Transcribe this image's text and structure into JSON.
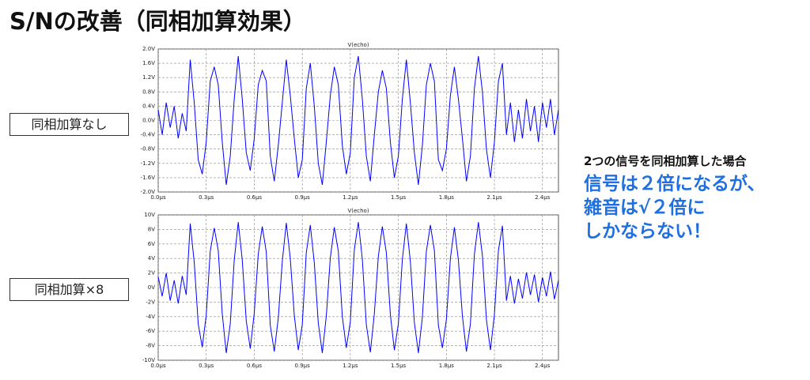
{
  "title": "S/Nの改善（同相加算効果）",
  "side_labels": [
    "同相加算なし",
    "同相加算×8"
  ],
  "note": {
    "heading": "2つの信号を同相加算した場合",
    "lines": [
      "信号は２倍になるが、",
      "雑音は√２倍に",
      "しかならない！"
    ]
  },
  "chart_data": [
    {
      "type": "line",
      "title": "V(echo)",
      "color": "#0000ff",
      "grid": true,
      "x": [
        0,
        0.025,
        0.05,
        0.075,
        0.1,
        0.125,
        0.15,
        0.175,
        0.2,
        0.225,
        0.25,
        0.275,
        0.3,
        0.325,
        0.35,
        0.375,
        0.4,
        0.425,
        0.45,
        0.475,
        0.5,
        0.525,
        0.55,
        0.575,
        0.6,
        0.625,
        0.65,
        0.675,
        0.7,
        0.725,
        0.75,
        0.775,
        0.8,
        0.825,
        0.85,
        0.875,
        0.9,
        0.925,
        0.95,
        0.975,
        1,
        1.025,
        1.05,
        1.075,
        1.1,
        1.125,
        1.15,
        1.175,
        1.2,
        1.225,
        1.25,
        1.275,
        1.3,
        1.325,
        1.35,
        1.375,
        1.4,
        1.425,
        1.45,
        1.475,
        1.5,
        1.525,
        1.55,
        1.575,
        1.6,
        1.625,
        1.65,
        1.675,
        1.7,
        1.725,
        1.75,
        1.775,
        1.8,
        1.825,
        1.85,
        1.875,
        1.9,
        1.925,
        1.95,
        1.975,
        2,
        2.025,
        2.05,
        2.075,
        2.1,
        2.125,
        2.15,
        2.175,
        2.2,
        2.225,
        2.25,
        2.275,
        2.3,
        2.325,
        2.35,
        2.375,
        2.4,
        2.425,
        2.45,
        2.475,
        2.5
      ],
      "values": [
        0.3,
        -0.4,
        0.5,
        -0.2,
        0.4,
        -0.5,
        0.2,
        -0.3,
        1.7,
        0.5,
        -1.1,
        -1.5,
        -0.6,
        1.1,
        1.5,
        1.0,
        -0.6,
        -1.8,
        -1.0,
        0.6,
        1.8,
        0.6,
        -0.9,
        -1.4,
        -0.5,
        1.0,
        1.4,
        1.1,
        -1.0,
        -1.7,
        -0.7,
        0.5,
        1.7,
        0.7,
        -0.5,
        -1.6,
        -1.1,
        0.9,
        1.6,
        0.4,
        -1.2,
        -1.8,
        -0.6,
        0.7,
        1.5,
        1.0,
        -0.7,
        -1.5,
        -0.9,
        1.2,
        1.8,
        0.6,
        -1.0,
        -1.7,
        -0.4,
        0.8,
        1.4,
        0.9,
        -0.6,
        -1.6,
        -1.0,
        0.6,
        1.7,
        0.5,
        -0.9,
        -1.8,
        -0.7,
        1.0,
        1.6,
        1.1,
        -1.1,
        -1.4,
        -0.8,
        0.7,
        1.5,
        0.6,
        -0.5,
        -1.7,
        -1.0,
        0.9,
        1.8,
        0.8,
        -0.8,
        -1.6,
        -0.6,
        1.1,
        1.6,
        -0.4,
        0.5,
        -0.6,
        0.3,
        -0.5,
        0.6,
        -0.3,
        0.4,
        -0.6,
        0.5,
        -0.2,
        0.6,
        -0.4,
        0.3
      ],
      "xlim": [
        0,
        2.5
      ],
      "ylim": [
        -2,
        2
      ],
      "xticks": [
        {
          "value": 0,
          "label": "0.0µs"
        },
        {
          "value": 0.3,
          "label": "0.3µs"
        },
        {
          "value": 0.6,
          "label": "0.6µs"
        },
        {
          "value": 0.9,
          "label": "0.9µs"
        },
        {
          "value": 1.2,
          "label": "1.2µs"
        },
        {
          "value": 1.5,
          "label": "1.5µs"
        },
        {
          "value": 1.8,
          "label": "1.8µs"
        },
        {
          "value": 2.1,
          "label": "2.1µs"
        },
        {
          "value": 2.4,
          "label": "2.4µs"
        }
      ],
      "yticks": [
        {
          "value": 2,
          "label": "2.0V"
        },
        {
          "value": 1.6,
          "label": "1.6V"
        },
        {
          "value": 1.2,
          "label": "1.2V"
        },
        {
          "value": 0.8,
          "label": "0.8V"
        },
        {
          "value": 0.4,
          "label": "0.4V"
        },
        {
          "value": 0,
          "label": "0.0V"
        },
        {
          "value": -0.4,
          "label": "-0.4V"
        },
        {
          "value": -0.8,
          "label": "-0.8V"
        },
        {
          "value": -1.2,
          "label": "-1.2V"
        },
        {
          "value": -1.6,
          "label": "-1.6V"
        },
        {
          "value": -2,
          "label": "-2.0V"
        }
      ]
    },
    {
      "type": "line",
      "title": "V(echo)",
      "color": "#0000ff",
      "grid": true,
      "x": [
        0,
        0.025,
        0.05,
        0.075,
        0.1,
        0.125,
        0.15,
        0.175,
        0.2,
        0.225,
        0.25,
        0.275,
        0.3,
        0.325,
        0.35,
        0.375,
        0.4,
        0.425,
        0.45,
        0.475,
        0.5,
        0.525,
        0.55,
        0.575,
        0.6,
        0.625,
        0.65,
        0.675,
        0.7,
        0.725,
        0.75,
        0.775,
        0.8,
        0.825,
        0.85,
        0.875,
        0.9,
        0.925,
        0.95,
        0.975,
        1,
        1.025,
        1.05,
        1.075,
        1.1,
        1.125,
        1.15,
        1.175,
        1.2,
        1.225,
        1.25,
        1.275,
        1.3,
        1.325,
        1.35,
        1.375,
        1.4,
        1.425,
        1.45,
        1.475,
        1.5,
        1.525,
        1.55,
        1.575,
        1.6,
        1.625,
        1.65,
        1.675,
        1.7,
        1.725,
        1.75,
        1.775,
        1.8,
        1.825,
        1.85,
        1.875,
        1.9,
        1.925,
        1.95,
        1.975,
        2,
        2.025,
        2.05,
        2.075,
        2.1,
        2.125,
        2.15,
        2.175,
        2.2,
        2.225,
        2.25,
        2.275,
        2.3,
        2.325,
        2.35,
        2.375,
        2.4,
        2.425,
        2.45,
        2.475,
        2.5
      ],
      "values": [
        1.5,
        -1.2,
        2.0,
        -1.8,
        1.0,
        -2.2,
        1.6,
        -1.0,
        8.8,
        3.5,
        -5.0,
        -8.2,
        -3.8,
        5.0,
        8.2,
        5.1,
        -3.6,
        -9.0,
        -5.0,
        3.8,
        9.0,
        3.8,
        -4.6,
        -8.4,
        -3.5,
        4.6,
        8.4,
        4.9,
        -5.2,
        -8.8,
        -4.2,
        3.6,
        8.9,
        4.0,
        -3.8,
        -8.6,
        -5.1,
        4.8,
        8.6,
        3.4,
        -4.9,
        -9.0,
        -3.9,
        4.1,
        8.3,
        5.0,
        -4.0,
        -8.3,
        -4.7,
        5.2,
        9.0,
        3.9,
        -5.1,
        -8.9,
        -3.6,
        4.3,
        8.4,
        4.8,
        -3.7,
        -8.6,
        -5.0,
        3.9,
        8.8,
        3.6,
        -4.8,
        -9.0,
        -4.1,
        5.0,
        8.6,
        5.1,
        -5.2,
        -8.3,
        -4.4,
        4.0,
        8.3,
        3.8,
        -3.9,
        -8.8,
        -5.0,
        4.6,
        9.0,
        4.4,
        -4.4,
        -8.6,
        -3.7,
        5.1,
        8.5,
        -1.8,
        1.6,
        -2.2,
        1.2,
        -1.5,
        2.1,
        -1.0,
        1.8,
        -2.0,
        1.4,
        -1.2,
        2.2,
        -1.6,
        1.0
      ],
      "xlim": [
        0,
        2.5
      ],
      "ylim": [
        -10,
        10
      ],
      "xticks": [
        {
          "value": 0,
          "label": "0.0µs"
        },
        {
          "value": 0.3,
          "label": "0.3µs"
        },
        {
          "value": 0.6,
          "label": "0.6µs"
        },
        {
          "value": 0.9,
          "label": "0.9µs"
        },
        {
          "value": 1.2,
          "label": "1.2µs"
        },
        {
          "value": 1.5,
          "label": "1.5µs"
        },
        {
          "value": 1.8,
          "label": "1.8µs"
        },
        {
          "value": 2.1,
          "label": "2.1µs"
        },
        {
          "value": 2.4,
          "label": "2.4µs"
        }
      ],
      "yticks": [
        {
          "value": 10,
          "label": "10V"
        },
        {
          "value": 8,
          "label": "8V"
        },
        {
          "value": 6,
          "label": "6V"
        },
        {
          "value": 4,
          "label": "4V"
        },
        {
          "value": 2,
          "label": "2V"
        },
        {
          "value": 0,
          "label": "0V"
        },
        {
          "value": -2,
          "label": "-2V"
        },
        {
          "value": -4,
          "label": "-4V"
        },
        {
          "value": -6,
          "label": "-6V"
        },
        {
          "value": -8,
          "label": "-8V"
        },
        {
          "value": -10,
          "label": "-10V"
        }
      ]
    }
  ]
}
